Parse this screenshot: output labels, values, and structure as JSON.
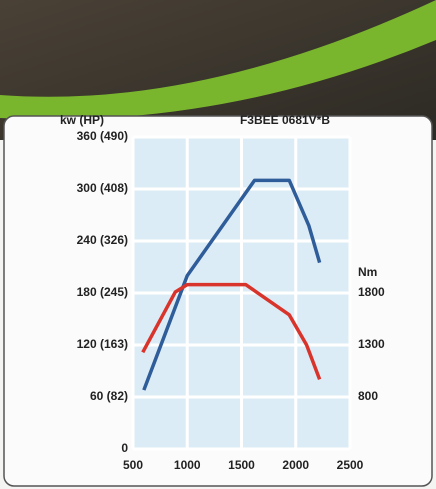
{
  "chart_data": {
    "type": "line",
    "title": "F3BEE 0681V*B",
    "y_label": "kw (HP)",
    "y2_label": "Nm",
    "xlim": [
      500,
      2500
    ],
    "xticks": [
      500,
      1000,
      1500,
      2000,
      2500
    ],
    "ylim": [
      0,
      360
    ],
    "yticks": [
      0,
      {
        "value": 60,
        "label": "60 (82)"
      },
      {
        "value": 120,
        "label": "120 (163)"
      },
      {
        "value": 180,
        "label": "180 (245)"
      },
      {
        "value": 240,
        "label": "240 (326)"
      },
      {
        "value": 300,
        "label": "300 (408)"
      },
      {
        "value": 360,
        "label": "360 (490)"
      }
    ],
    "y2lim": [
      300,
      3300
    ],
    "y2ticks": [
      800,
      1300,
      1800
    ],
    "grid": true,
    "series": [
      {
        "color": "#2f5d9a",
        "x": [
          600,
          1000,
          1620,
          1940,
          2120,
          2220
        ],
        "values": [
          68,
          200,
          310,
          310,
          258,
          215
        ]
      },
      {
        "color": "#d9342b",
        "axis": "y2",
        "x": [
          590,
          890,
          1000,
          1540,
          1940,
          2100,
          2220
        ],
        "values": [
          1230,
          1810,
          1880,
          1880,
          1590,
          1300,
          970
        ]
      }
    ]
  }
}
